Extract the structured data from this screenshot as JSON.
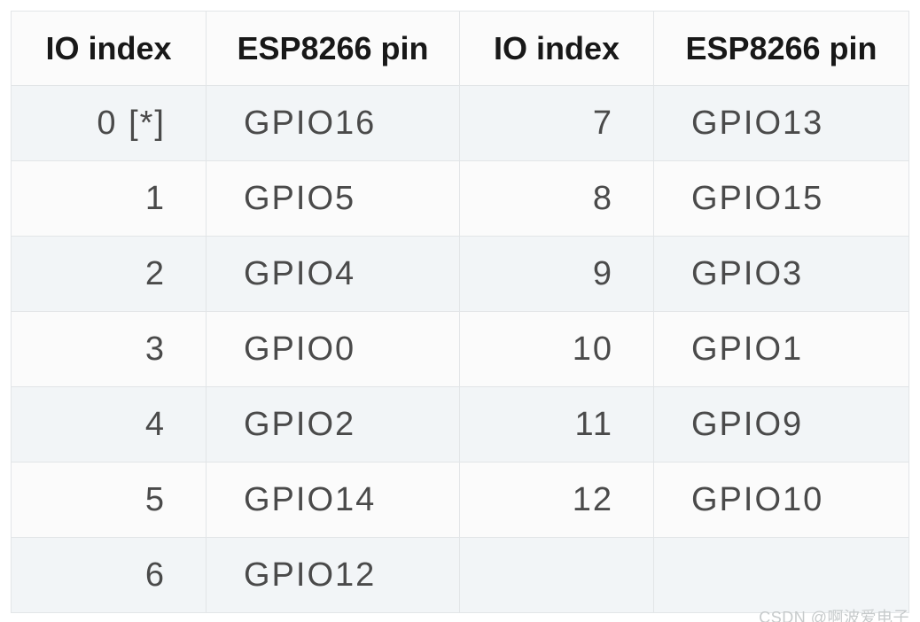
{
  "table": {
    "headers": [
      "IO index",
      "ESP8266 pin",
      "IO index",
      "ESP8266 pin"
    ],
    "rows": [
      [
        "0 [*]",
        "GPIO16",
        "7",
        "GPIO13"
      ],
      [
        "1",
        "GPIO5",
        "8",
        "GPIO15"
      ],
      [
        "2",
        "GPIO4",
        "9",
        "GPIO3"
      ],
      [
        "3",
        "GPIO0",
        "10",
        "GPIO1"
      ],
      [
        "4",
        "GPIO2",
        "11",
        "GPIO9"
      ],
      [
        "5",
        "GPIO14",
        "12",
        "GPIO10"
      ],
      [
        "6",
        "GPIO12",
        "",
        ""
      ]
    ],
    "colors": {
      "header_background": "#fbfbfb",
      "row_stripe_odd": "#f2f5f7",
      "row_stripe_even": "#fbfbfb",
      "border": "#e2e5e7",
      "header_text": "#181818",
      "cell_text": "#4a4a4a"
    }
  },
  "watermark": {
    "text": "CSDN @啊波爱电子",
    "color": "#c6cacb"
  }
}
